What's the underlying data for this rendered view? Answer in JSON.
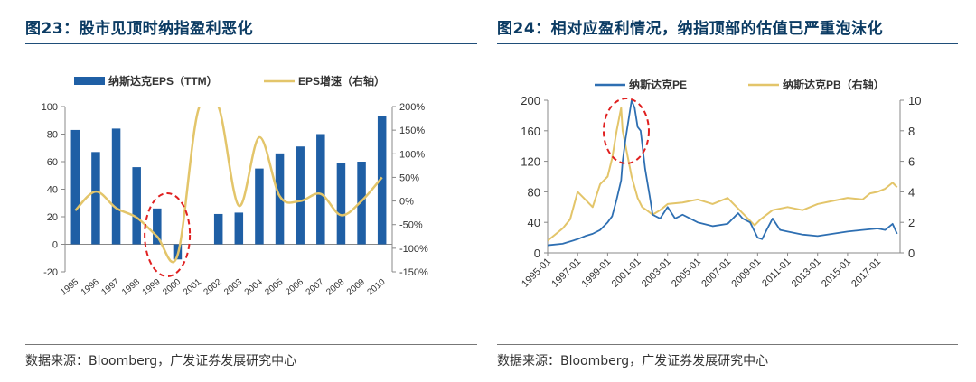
{
  "figures": [
    {
      "title": "图23：股市见顶时纳指盈利恶化",
      "source": "数据来源：Bloomberg，广发证券发展研究中心"
    },
    {
      "title": "图24：相对应盈利情况，纳指顶部的估值已严重泡沫化",
      "source": "数据来源：Bloomberg，广发证券发展研究中心"
    }
  ],
  "colors": {
    "bar": "#1f5fa5",
    "line_gold": "#e3c56a",
    "line_blue": "#2e6fb2",
    "highlight": "#e02020",
    "title": "#0b3b63"
  },
  "chart_data": [
    {
      "type": "bar+line",
      "legend": {
        "placement": "top",
        "entries": [
          "纳斯达克EPS（TTM）",
          "EPS增速（右轴）"
        ]
      },
      "categories": [
        "1995",
        "1996",
        "1997",
        "1998",
        "1999",
        "2000",
        "2001",
        "2002",
        "2003",
        "2004",
        "2005",
        "2006",
        "2007",
        "2008",
        "2009",
        "2010"
      ],
      "series": [
        {
          "name": "纳斯达克EPS（TTM）",
          "type": "bar",
          "axis": "left",
          "values": [
            83,
            67,
            84,
            56,
            26,
            -11,
            null,
            22,
            23,
            55,
            66,
            71,
            80,
            59,
            60,
            93
          ]
        },
        {
          "name": "EPS增速（右轴）",
          "type": "line",
          "axis": "right",
          "values": [
            -20,
            20,
            -15,
            -35,
            -75,
            -115,
            190,
            200,
            -10,
            135,
            10,
            0,
            15,
            -30,
            0,
            50
          ]
        }
      ],
      "y_left": {
        "ylim": [
          -20,
          100
        ],
        "ticks": [
          -20,
          0,
          20,
          40,
          60,
          80,
          100
        ]
      },
      "y_right": {
        "ylim": [
          -150,
          200
        ],
        "ticks": [
          "-150%",
          "-100%",
          "-50%",
          "0%",
          "50%",
          "100%",
          "150%",
          "200%"
        ]
      },
      "annotation": {
        "type": "dashed-ellipse",
        "around": [
          "1999",
          "2000"
        ]
      },
      "grid": false
    },
    {
      "type": "line",
      "legend": {
        "placement": "top",
        "entries": [
          "纳斯达克PE",
          "纳斯达克PB（右轴）"
        ]
      },
      "x_ticks": [
        "1995-01",
        "1997-01",
        "1999-01",
        "2001-01",
        "2003-01",
        "2005-01",
        "2007-01",
        "2009-01",
        "2011-01",
        "2013-01",
        "2015-01",
        "2017-01"
      ],
      "series": [
        {
          "name": "纳斯达克PE",
          "axis": "left",
          "x": [
            1995.0,
            1996.0,
            1997.0,
            1997.5,
            1998.0,
            1998.5,
            1999.0,
            1999.3,
            1999.6,
            1999.9,
            2000.0,
            2000.2,
            2000.4,
            2000.6,
            2000.8,
            2001.0,
            2001.2,
            2001.5,
            2001.8,
            2002.0,
            2002.5,
            2003.0,
            2003.5,
            2004.0,
            2005.0,
            2006.0,
            2007.0,
            2007.7,
            2008.0,
            2008.5,
            2009.0,
            2009.3,
            2009.6,
            2010.0,
            2010.5,
            2011.0,
            2012.0,
            2013.0,
            2014.0,
            2015.0,
            2016.0,
            2017.0,
            2017.5,
            2018.0,
            2018.3
          ],
          "values": [
            10,
            12,
            18,
            22,
            25,
            30,
            40,
            48,
            70,
            95,
            120,
            150,
            175,
            200,
            190,
            165,
            160,
            110,
            75,
            50,
            45,
            60,
            45,
            50,
            40,
            35,
            38,
            52,
            45,
            40,
            20,
            18,
            30,
            45,
            30,
            28,
            24,
            22,
            25,
            28,
            30,
            32,
            30,
            38,
            25
          ]
        },
        {
          "name": "纳斯达克PB（右轴）",
          "axis": "right",
          "x": [
            1995.0,
            1995.5,
            1996.0,
            1996.5,
            1997.0,
            1997.5,
            1998.0,
            1998.5,
            1999.0,
            1999.3,
            1999.6,
            1999.9,
            2000.0,
            2000.3,
            2000.6,
            2001.0,
            2001.3,
            2001.6,
            2002.0,
            2002.5,
            2003.0,
            2004.0,
            2005.0,
            2006.0,
            2007.0,
            2008.0,
            2008.8,
            2009.2,
            2010.0,
            2011.0,
            2012.0,
            2013.0,
            2014.0,
            2015.0,
            2016.0,
            2016.5,
            2017.0,
            2017.5,
            2018.0,
            2018.3
          ],
          "values": [
            0.8,
            1.2,
            1.6,
            2.2,
            4.0,
            3.5,
            3.0,
            4.5,
            5.0,
            6.2,
            8.0,
            9.5,
            8.0,
            6.5,
            5.0,
            3.6,
            3.0,
            2.8,
            2.5,
            2.8,
            3.2,
            3.3,
            3.5,
            3.2,
            3.6,
            2.6,
            1.8,
            2.2,
            2.8,
            3.0,
            2.8,
            3.2,
            3.4,
            3.6,
            3.5,
            3.9,
            4.0,
            4.2,
            4.6,
            4.3
          ]
        }
      ],
      "y_left": {
        "ylim": [
          0,
          200
        ],
        "ticks": [
          0,
          40,
          80,
          120,
          160,
          200
        ]
      },
      "y_right": {
        "ylim": [
          0,
          10
        ],
        "ticks": [
          0,
          2,
          4,
          6,
          8,
          10
        ]
      },
      "annotation": {
        "type": "dashed-ellipse",
        "around": [
          "1999-01",
          "2001-01"
        ]
      },
      "grid": false
    }
  ]
}
